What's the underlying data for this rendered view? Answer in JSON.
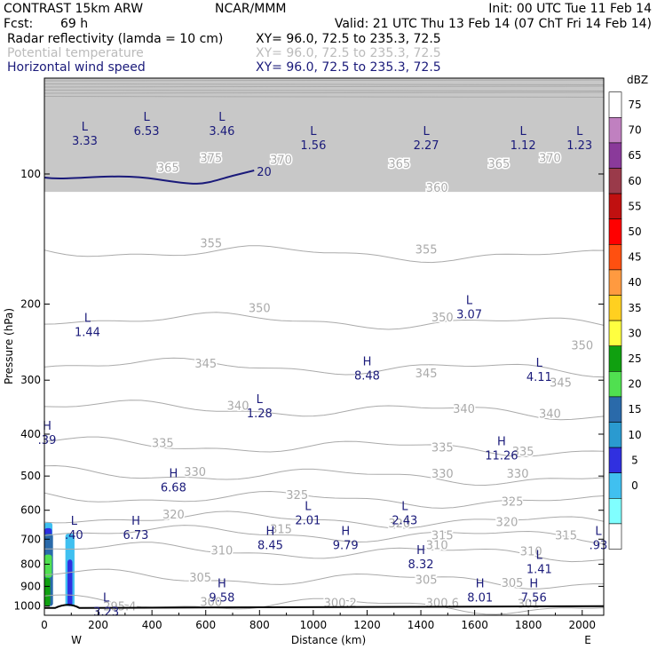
{
  "header": {
    "model": "CONTRAST 15km ARW",
    "org": "NCAR/MMM",
    "init": "Init: 00 UTC Tue 11 Feb 14",
    "fcst_label": "Fcst:",
    "fcst_value": "69 h",
    "valid": "Valid: 21 UTC Thu 13 Feb 14 (07 ChT Fri 14 Feb 14)",
    "fields": [
      {
        "name": "Radar reflectivity (lamda = 10 cm)",
        "xy": "XY=  96.0, 72.5 to 235.3, 72.5",
        "color": "#000000"
      },
      {
        "name": "Potential temperature",
        "xy": "XY=  96.0, 72.5 to 235.3, 72.5",
        "color": "#bbbbbb"
      },
      {
        "name": "Horizontal wind speed",
        "xy": "XY=  96.0, 72.5 to 235.3, 72.5",
        "color": "#1a1a7a"
      }
    ]
  },
  "chart_data": {
    "type": "heatmap",
    "xlabel": "Distance (km)",
    "ylabel": "Pressure (hPa)",
    "xlim": [
      0,
      2080
    ],
    "ylim": [
      1050,
      60
    ],
    "xticks": [
      0,
      200,
      400,
      600,
      800,
      1000,
      1200,
      1400,
      1600,
      1800,
      2000
    ],
    "yticks": [
      100,
      200,
      300,
      400,
      500,
      600,
      700,
      800,
      900,
      1000
    ],
    "left_end_label": "W",
    "right_end_label": "E",
    "theta_contours": [
      {
        "label": "355",
        "p": 150
      },
      {
        "label": "350",
        "p": 215
      },
      {
        "label": "345",
        "p": 275
      },
      {
        "label": "340",
        "p": 345
      },
      {
        "label": "335",
        "p": 420
      },
      {
        "label": "330",
        "p": 490
      },
      {
        "label": "325",
        "p": 555
      },
      {
        "label": "320",
        "p": 620
      },
      {
        "label": "315",
        "p": 670
      },
      {
        "label": "310",
        "p": 735
      },
      {
        "label": "305",
        "p": 850
      },
      {
        "label": "300",
        "p": 975
      }
    ],
    "theta_labels": [
      {
        "text": "355",
        "x": 620,
        "p": 145
      },
      {
        "text": "355",
        "x": 1420,
        "p": 150
      },
      {
        "text": "350",
        "x": 800,
        "p": 205
      },
      {
        "text": "350",
        "x": 1480,
        "p": 215
      },
      {
        "text": "350",
        "x": 2000,
        "p": 250
      },
      {
        "text": "345",
        "x": 600,
        "p": 275
      },
      {
        "text": "345",
        "x": 1420,
        "p": 290
      },
      {
        "text": "345",
        "x": 1920,
        "p": 305
      },
      {
        "text": "340",
        "x": 720,
        "p": 345
      },
      {
        "text": "340",
        "x": 1560,
        "p": 350
      },
      {
        "text": "340",
        "x": 1880,
        "p": 360
      },
      {
        "text": "335",
        "x": 440,
        "p": 420
      },
      {
        "text": "335",
        "x": 1480,
        "p": 430
      },
      {
        "text": "335",
        "x": 1780,
        "p": 440
      },
      {
        "text": "330",
        "x": 560,
        "p": 490
      },
      {
        "text": "330",
        "x": 1480,
        "p": 495
      },
      {
        "text": "330",
        "x": 1760,
        "p": 495
      },
      {
        "text": "325",
        "x": 940,
        "p": 555
      },
      {
        "text": "325",
        "x": 1740,
        "p": 575
      },
      {
        "text": "320",
        "x": 480,
        "p": 615
      },
      {
        "text": "320",
        "x": 1320,
        "p": 645
      },
      {
        "text": "320",
        "x": 1720,
        "p": 640
      },
      {
        "text": "315",
        "x": 880,
        "p": 665
      },
      {
        "text": "315",
        "x": 1480,
        "p": 688
      },
      {
        "text": "315",
        "x": 1940,
        "p": 688
      },
      {
        "text": "310",
        "x": 660,
        "p": 745
      },
      {
        "text": "310",
        "x": 1460,
        "p": 725
      },
      {
        "text": "310",
        "x": 1810,
        "p": 748
      },
      {
        "text": "305",
        "x": 580,
        "p": 860
      },
      {
        "text": "305",
        "x": 1420,
        "p": 870
      },
      {
        "text": "305",
        "x": 1740,
        "p": 885
      },
      {
        "text": "300",
        "x": 620,
        "p": 980
      },
      {
        "text": "300.2",
        "x": 1100,
        "p": 985
      },
      {
        "text": "300.6",
        "x": 1480,
        "p": 985
      },
      {
        "text": "301",
        "x": 1800,
        "p": 990
      },
      {
        "text": "295.4",
        "x": 280,
        "p": 1005
      },
      {
        "text": "370",
        "x": 880,
        "p": 93
      },
      {
        "text": "365",
        "x": 1320,
        "p": 95
      },
      {
        "text": "360",
        "x": 1460,
        "p": 108
      },
      {
        "text": "365",
        "x": 1690,
        "p": 95
      },
      {
        "text": "370",
        "x": 1880,
        "p": 92
      },
      {
        "text": "365",
        "x": 460,
        "p": 97
      },
      {
        "text": "375",
        "x": 620,
        "p": 92
      }
    ],
    "wind_speed_contour": {
      "label": "20",
      "p": 100
    },
    "extrema": [
      {
        "kind": "L",
        "value": "3.33",
        "x": 150,
        "p": 80
      },
      {
        "kind": "L",
        "value": "6.53",
        "x": 380,
        "p": 76
      },
      {
        "kind": "L",
        "value": "3.46",
        "x": 660,
        "p": 76
      },
      {
        "kind": "L",
        "value": "1.56",
        "x": 1000,
        "p": 82
      },
      {
        "kind": "L",
        "value": "2.27",
        "x": 1420,
        "p": 82
      },
      {
        "kind": "L",
        "value": "1.12",
        "x": 1780,
        "p": 82
      },
      {
        "kind": "L",
        "value": "1.23",
        "x": 1990,
        "p": 82
      },
      {
        "kind": "L",
        "value": "1.44",
        "x": 160,
        "p": 222
      },
      {
        "kind": "L",
        "value": "3.07",
        "x": 1580,
        "p": 202
      },
      {
        "kind": "H",
        "value": "8.48",
        "x": 1200,
        "p": 280
      },
      {
        "kind": "L",
        "value": "4.11",
        "x": 1840,
        "p": 282
      },
      {
        "kind": "L",
        "value": "1.28",
        "x": 800,
        "p": 342
      },
      {
        "kind": "H",
        "value": ".39",
        "x": 10,
        "p": 394
      },
      {
        "kind": "H",
        "value": "11.26",
        "x": 1700,
        "p": 428
      },
      {
        "kind": "H",
        "value": "6.68",
        "x": 480,
        "p": 508
      },
      {
        "kind": "L",
        "value": "2.01",
        "x": 980,
        "p": 605
      },
      {
        "kind": "L",
        "value": "2.43",
        "x": 1340,
        "p": 605
      },
      {
        "kind": "L",
        "value": ".40",
        "x": 110,
        "p": 655
      },
      {
        "kind": "H",
        "value": "6.73",
        "x": 340,
        "p": 655
      },
      {
        "kind": "H",
        "value": "8.45",
        "x": 840,
        "p": 690
      },
      {
        "kind": "H",
        "value": "9.79",
        "x": 1120,
        "p": 690
      },
      {
        "kind": "L",
        "value": ".93",
        "x": 2060,
        "p": 690
      },
      {
        "kind": "H",
        "value": "8.32",
        "x": 1400,
        "p": 765
      },
      {
        "kind": "L",
        "value": "1.41",
        "x": 1840,
        "p": 785
      },
      {
        "kind": "H",
        "value": "9.58",
        "x": 660,
        "p": 913
      },
      {
        "kind": "H",
        "value": "8.01",
        "x": 1620,
        "p": 913
      },
      {
        "kind": "H",
        "value": "7.56",
        "x": 1820,
        "p": 913
      },
      {
        "kind": "L",
        "value": "3.23",
        "x": 230,
        "p": 985
      }
    ],
    "reflectivity_patches": [
      {
        "dbz": 5,
        "x0": 0,
        "x1": 30,
        "p0": 640,
        "p1": 1000
      },
      {
        "dbz": 10,
        "x0": 0,
        "x1": 28,
        "p0": 660,
        "p1": 1000
      },
      {
        "dbz": 20,
        "x0": 0,
        "x1": 32,
        "p0": 680,
        "p1": 1000
      },
      {
        "dbz": 25,
        "x0": 0,
        "x1": 28,
        "p0": 760,
        "p1": 860
      },
      {
        "dbz": 30,
        "x0": 0,
        "x1": 22,
        "p0": 860,
        "p1": 1000
      },
      {
        "dbz": 5,
        "x0": 78,
        "x1": 112,
        "p0": 680,
        "p1": 1000
      },
      {
        "dbz": 10,
        "x0": 86,
        "x1": 104,
        "p0": 780,
        "p1": 1000
      }
    ],
    "colorbar": {
      "label": "dBZ",
      "levels": [
        "75",
        "70",
        "65",
        "60",
        "55",
        "50",
        "45",
        "40",
        "35",
        "30",
        "25",
        "20",
        "15",
        "10",
        "5",
        "0"
      ],
      "colors": [
        "#ffffff",
        "#c080c0",
        "#8a3a9a",
        "#9a3a4a",
        "#c01010",
        "#ff0000",
        "#ff5010",
        "#ff9a40",
        "#ffd020",
        "#ffff40",
        "#10a010",
        "#50e050",
        "#2a6aaa",
        "#2a9ad0",
        "#3030e0",
        "#40c0f0",
        "#80ffff",
        "#ffffff"
      ]
    },
    "ground": {
      "p": 1005
    },
    "top_gray_band": {
      "p0": 60,
      "p1": 110
    }
  }
}
